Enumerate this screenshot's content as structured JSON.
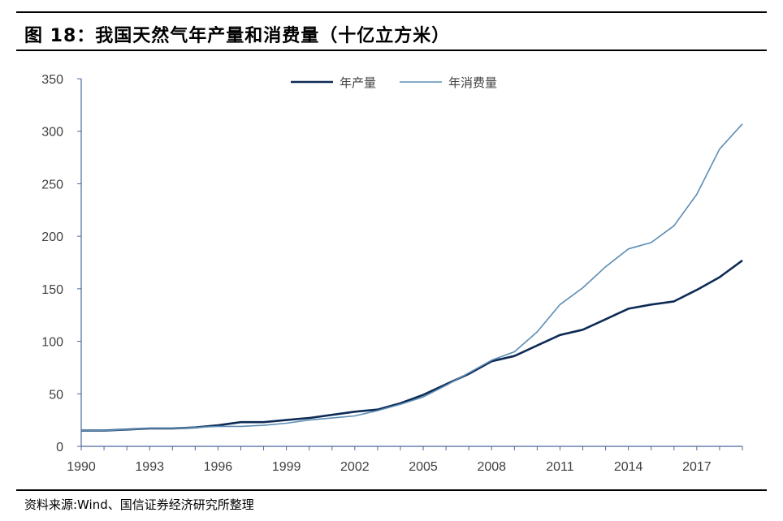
{
  "title": "图 18：我国天然气年产量和消费量（十亿立方米）",
  "source": "资料来源:Wind、国信证券经济研究所整理",
  "colors": {
    "production": "#0d2b55",
    "consumption": "#5b8db5",
    "axis": "#4a6a9a"
  },
  "chart_data": {
    "type": "line",
    "title": "图 18：我国天然气年产量和消费量（十亿立方米）",
    "xlabel": "",
    "ylabel": "",
    "xlim": [
      1990,
      2019
    ],
    "ylim": [
      0,
      350
    ],
    "yticks": [
      "0",
      "50",
      "100",
      "150",
      "200",
      "250",
      "300",
      "350"
    ],
    "xticks": [
      "1990",
      "1993",
      "1996",
      "1999",
      "2002",
      "2005",
      "2008",
      "2011",
      "2014",
      "2017"
    ],
    "legend": "top-center",
    "grid": false,
    "x": [
      1990,
      1991,
      1992,
      1993,
      1994,
      1995,
      1996,
      1997,
      1998,
      1999,
      2000,
      2001,
      2002,
      2003,
      2004,
      2005,
      2006,
      2007,
      2008,
      2009,
      2010,
      2011,
      2012,
      2013,
      2014,
      2015,
      2016,
      2017,
      2018,
      2019
    ],
    "series": [
      {
        "name": "年产量",
        "values": [
          15,
          15,
          16,
          17,
          17,
          18,
          20,
          23,
          23,
          25,
          27,
          30,
          33,
          35,
          41,
          49,
          59,
          69,
          81,
          86,
          96,
          106,
          111,
          121,
          131,
          135,
          138,
          149,
          161,
          177
        ]
      },
      {
        "name": "年消费量",
        "values": [
          15,
          15,
          16,
          17,
          17,
          18,
          19,
          19,
          20,
          22,
          25,
          27,
          29,
          34,
          40,
          47,
          58,
          70,
          82,
          90,
          109,
          135,
          151,
          171,
          188,
          194,
          210,
          240,
          283,
          307
        ]
      }
    ]
  }
}
